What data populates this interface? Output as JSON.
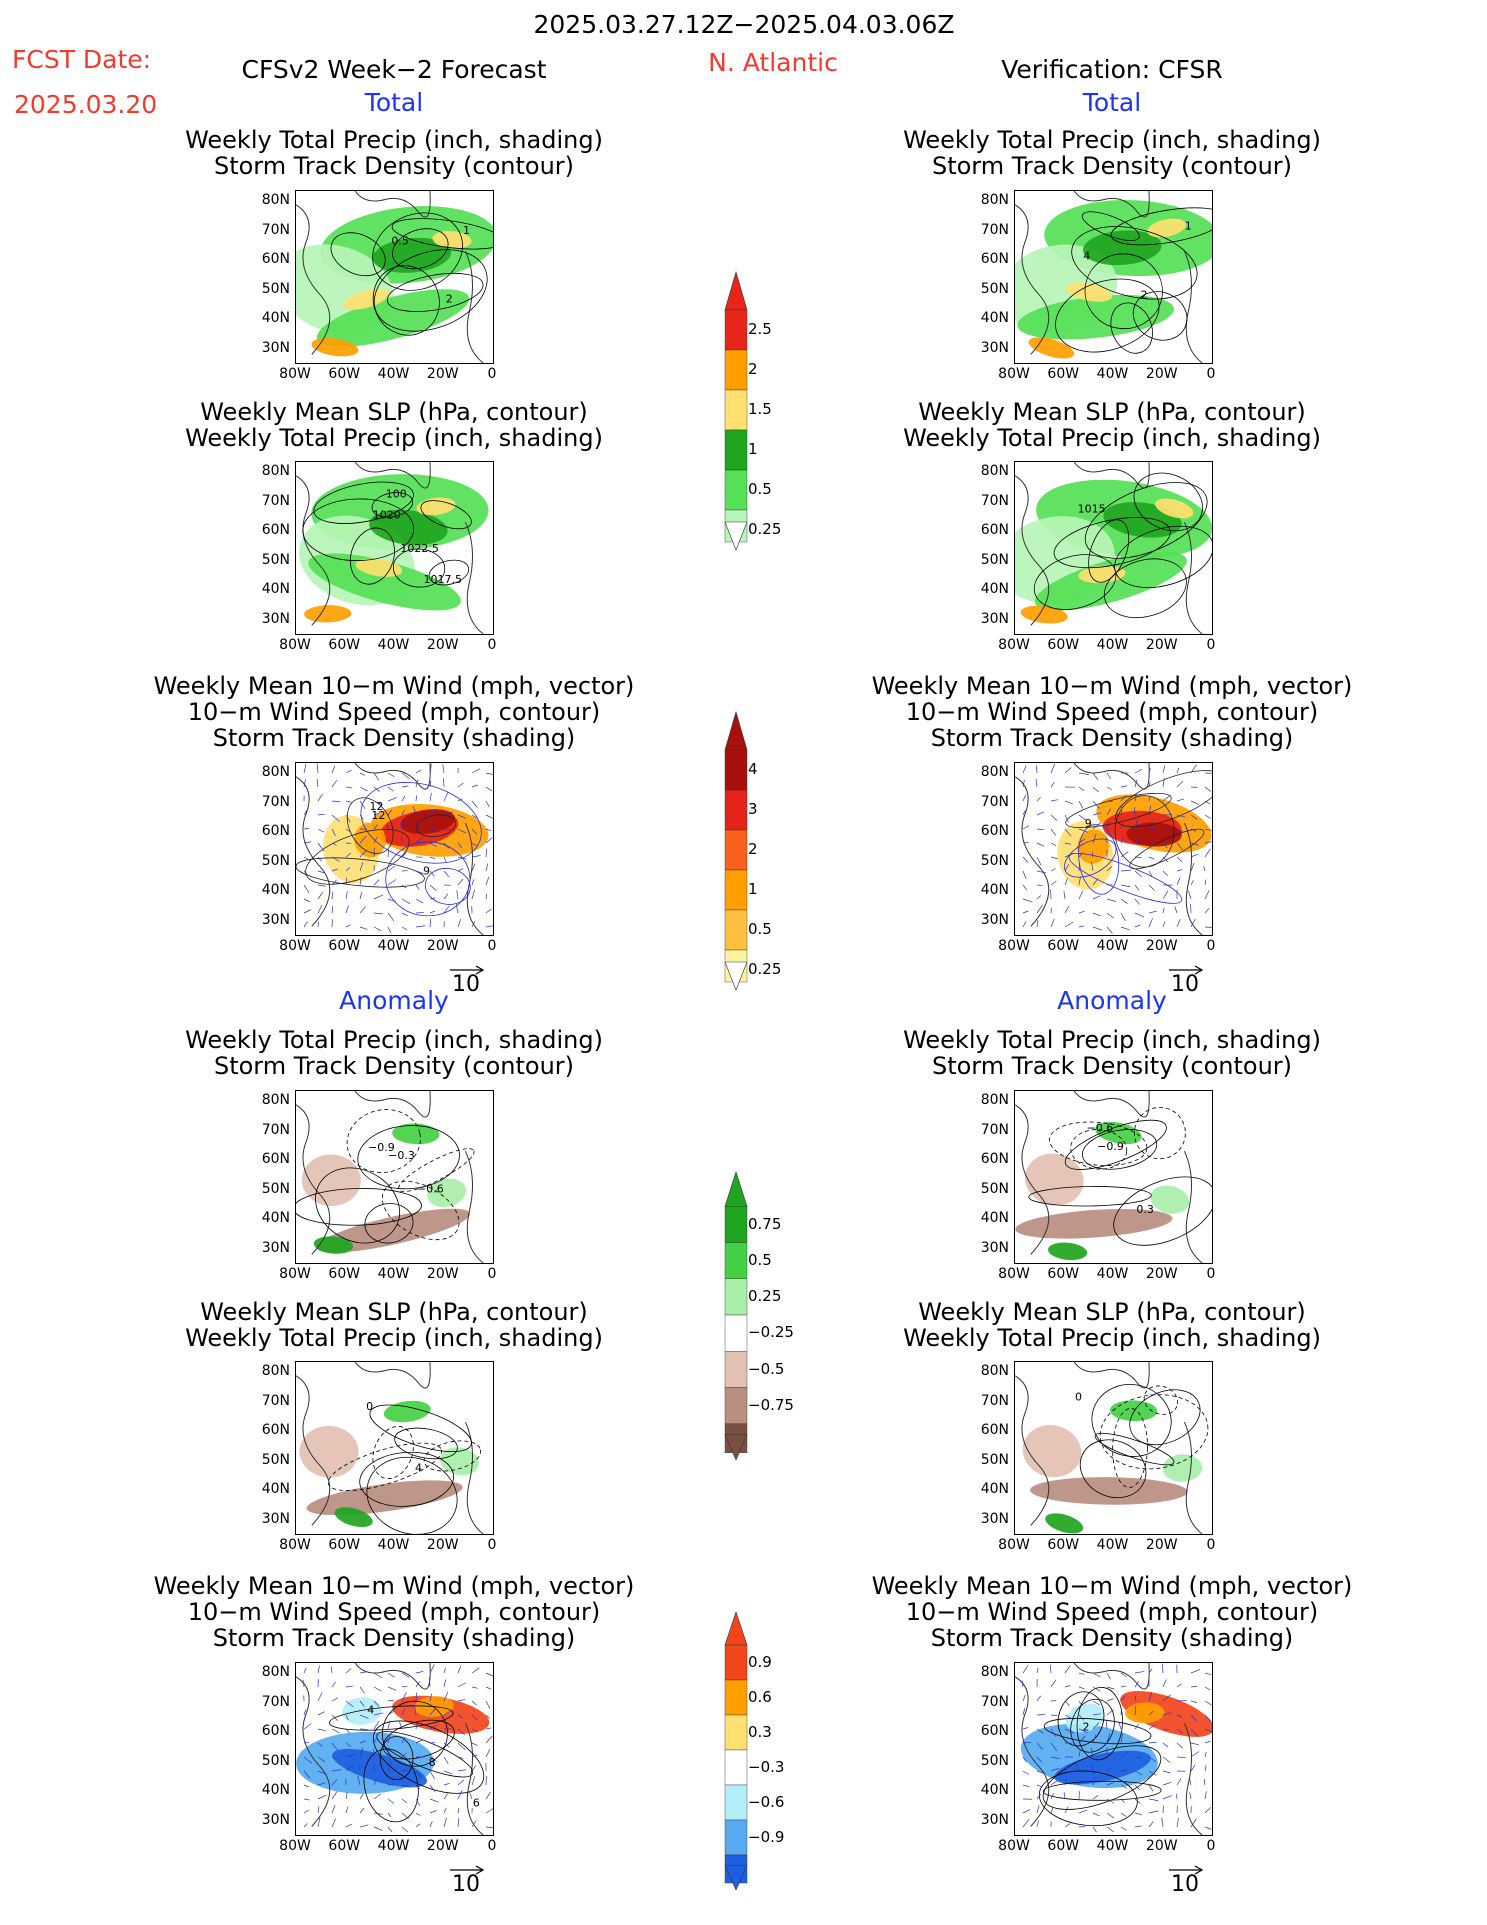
{
  "header": {
    "period": "2025.03.27.12Z−2025.04.03.06Z",
    "fcst_label": "FCST Date:",
    "fcst_date": "2025.03.20",
    "model": "CFSv2 Week−2 Forecast",
    "region": "N. Atlantic",
    "verification": "Verification: CFSR"
  },
  "sections": {
    "total": "Total",
    "anomaly": "Anomaly"
  },
  "titles": {
    "precip_storm": [
      "Weekly Total Precip (inch, shading)",
      "Storm Track Density (contour)"
    ],
    "slp_precip": [
      "Weekly Mean SLP (hPa, contour)",
      "Weekly Total Precip (inch, shading)"
    ],
    "wind_storm": [
      "Weekly Mean 10−m Wind (mph, vector)",
      "10−m Wind Speed (mph, contour)",
      "Storm Track Density (shading)"
    ]
  },
  "axes": {
    "lat_ticks": [
      "80N",
      "70N",
      "60N",
      "50N",
      "40N",
      "30N"
    ],
    "lon_ticks": [
      "80W",
      "60W",
      "40W",
      "20W",
      "0"
    ]
  },
  "vector_reference": "10",
  "colorbars": [
    {
      "name": "total-precip",
      "labels": [
        "2.5",
        "2",
        "1.5",
        "1",
        "0.5",
        "0.25"
      ],
      "colors": [
        "#e8251b",
        "#ff9e00",
        "#ffe070",
        "#1fa51f",
        "#55e055",
        "#b6f5b6"
      ]
    },
    {
      "name": "total-storm-density",
      "labels": [
        "4",
        "3",
        "2",
        "1",
        "0.5",
        "0.25"
      ],
      "colors": [
        "#a8100c",
        "#e4241b",
        "#f8601c",
        "#ff9e00",
        "#ffc040",
        "#fff3a0"
      ]
    },
    {
      "name": "anom-precip",
      "labels": [
        "0.75",
        "0.5",
        "0.25",
        "−0.25",
        "−0.5",
        "−0.75"
      ],
      "colors": [
        "#1fa51f",
        "#44d044",
        "#a8eea8",
        "#ffffff",
        "#e2c0b2",
        "#b88e80",
        "#7a5040"
      ]
    },
    {
      "name": "anom-storm-density",
      "labels": [
        "0.9",
        "0.6",
        "0.3",
        "−0.3",
        "−0.6",
        "−0.9"
      ],
      "colors": [
        "#f2451c",
        "#ff9e00",
        "#ffe070",
        "#ffffff",
        "#b4eef8",
        "#55aaf0",
        "#1d5fe0"
      ]
    }
  ],
  "contour_labels": {
    "p1L": [
      "0.5",
      "2",
      "1"
    ],
    "p1R": [
      "4",
      "2",
      "1"
    ],
    "p2L": [
      "100",
      "1017.5",
      "1020",
      "1022.5"
    ],
    "p2R": [
      "1015"
    ],
    "p3L": [
      "12",
      "9",
      "12"
    ],
    "p3R": [
      "9"
    ],
    "p4L": [
      "−0.3",
      "−0.6",
      "−0.9"
    ],
    "p4R": [
      "−0.9",
      "0.3",
      "−0.6"
    ],
    "p5L": [
      "0",
      "4"
    ],
    "p5R": [
      "0"
    ],
    "p6L": [
      "4",
      "8",
      "6"
    ],
    "p6R": [
      "2"
    ]
  }
}
